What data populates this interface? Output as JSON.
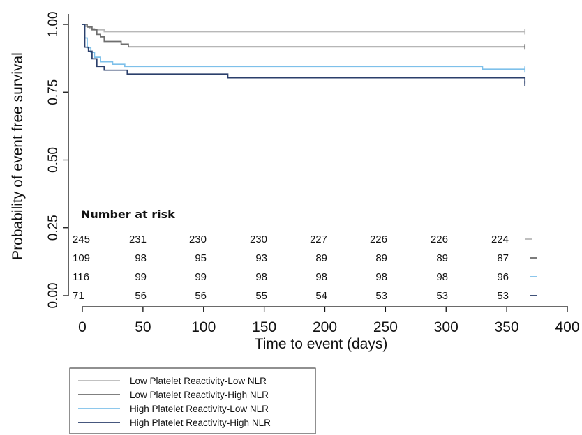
{
  "chart_data": {
    "type": "line",
    "step": true,
    "xlabel": "Time to event (days)",
    "ylabel": "Probability of event free survival",
    "xlim": [
      0,
      400
    ],
    "ylim": [
      0,
      1
    ],
    "x_ticks": [
      0,
      50,
      100,
      150,
      200,
      250,
      300,
      350,
      400
    ],
    "x_tick_labels": [
      "0",
      "50",
      "100",
      "150",
      "200",
      "250",
      "300",
      "350",
      "400"
    ],
    "y_ticks": [
      0,
      0.25,
      0.5,
      0.75,
      1
    ],
    "y_tick_labels": [
      "0.00",
      "0.25",
      "0.50",
      "0.75",
      "1.00"
    ],
    "grid": false,
    "legend_position": "bottom-left",
    "series": [
      {
        "name": "Low Platelet Reactivity-Low NLR",
        "color": "#b8b8b8",
        "x": [
          0,
          3,
          6,
          10,
          18,
          365
        ],
        "y": [
          1.0,
          0.992,
          0.984,
          0.98,
          0.973,
          0.973
        ]
      },
      {
        "name": "Low Platelet Reactivity-High NLR",
        "color": "#6e6e6e",
        "x": [
          0,
          4,
          8,
          12,
          15,
          18,
          32,
          38,
          365
        ],
        "y": [
          1.0,
          0.99,
          0.98,
          0.963,
          0.954,
          0.937,
          0.927,
          0.917,
          0.917
        ]
      },
      {
        "name": "High Platelet Reactivity-Low NLR",
        "color": "#7ec0ea",
        "x": [
          0,
          2,
          4,
          7,
          10,
          15,
          25,
          35,
          130,
          330,
          365
        ],
        "y": [
          1.0,
          0.95,
          0.914,
          0.897,
          0.879,
          0.862,
          0.853,
          0.845,
          0.845,
          0.835,
          0.835
        ]
      },
      {
        "name": "High Platelet Reactivity-High NLR",
        "color": "#2b3f6b",
        "x": [
          0,
          2,
          5,
          8,
          12,
          18,
          37,
          120,
          365
        ],
        "y": [
          1.0,
          0.916,
          0.901,
          0.873,
          0.845,
          0.831,
          0.817,
          0.803,
          0.782
        ]
      }
    ],
    "risk_table": {
      "title": "Number at risk",
      "times": [
        0,
        50,
        100,
        150,
        200,
        250,
        300,
        350
      ],
      "rows": [
        {
          "series": "Low Platelet Reactivity-Low NLR",
          "counts": [
            "245",
            "231",
            "230",
            "230",
            "227",
            "226",
            "226",
            "224"
          ]
        },
        {
          "series": "Low Platelet Reactivity-High NLR",
          "counts": [
            "109",
            "98",
            "95",
            "93",
            "89",
            "89",
            "89",
            "87"
          ]
        },
        {
          "series": "High Platelet Reactivity-Low NLR",
          "counts": [
            "116",
            "99",
            "99",
            "98",
            "98",
            "98",
            "98",
            "96"
          ]
        },
        {
          "series": "High Platelet Reactivity-High NLR",
          "counts": [
            "71",
            "56",
            "56",
            "55",
            "54",
            "53",
            "53",
            "53"
          ]
        }
      ]
    }
  }
}
